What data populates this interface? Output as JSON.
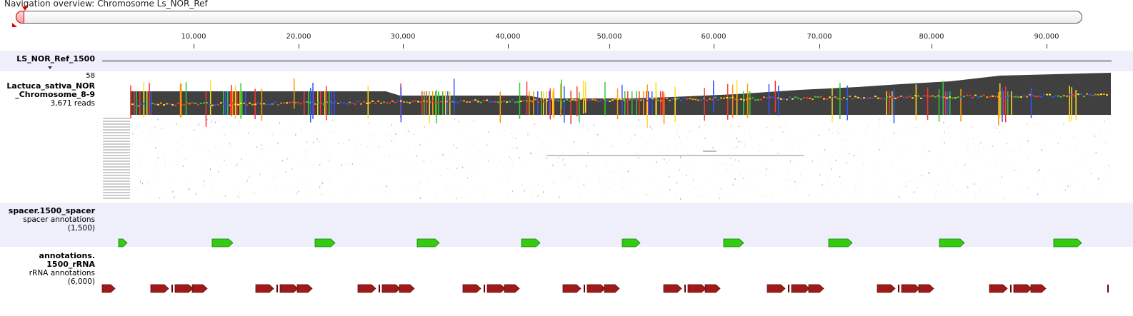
{
  "navigation": {
    "title": "Navigation overview: Chromosome Ls_NOR_Ref",
    "handle_color": "#dd0000"
  },
  "ruler": {
    "ticks": [
      "10,000",
      "20,000",
      "30,000",
      "40,000",
      "50,000",
      "60,000",
      "70,000",
      "80,000",
      "90,000"
    ]
  },
  "reference_track": {
    "name": "LS_NOR_Ref_1500"
  },
  "reads_track": {
    "coverage_max": "58",
    "name_line1": "Lactuca_sativa_NOR",
    "name_line2": "_Chromosome_8-9",
    "read_count": "3,671 reads",
    "coverage_color": "#404040"
  },
  "spacer_track": {
    "name": "spacer.1500_spacer",
    "subtitle": "spacer annotations",
    "count": "(1,500)",
    "feature_color": "#33cc11"
  },
  "rrna_track": {
    "name_line1": "annotations.",
    "name_line2": "1500_rRNA",
    "subtitle": "rRNA annotations",
    "count": "(6,000)",
    "feature_color": "#a01a1a"
  }
}
